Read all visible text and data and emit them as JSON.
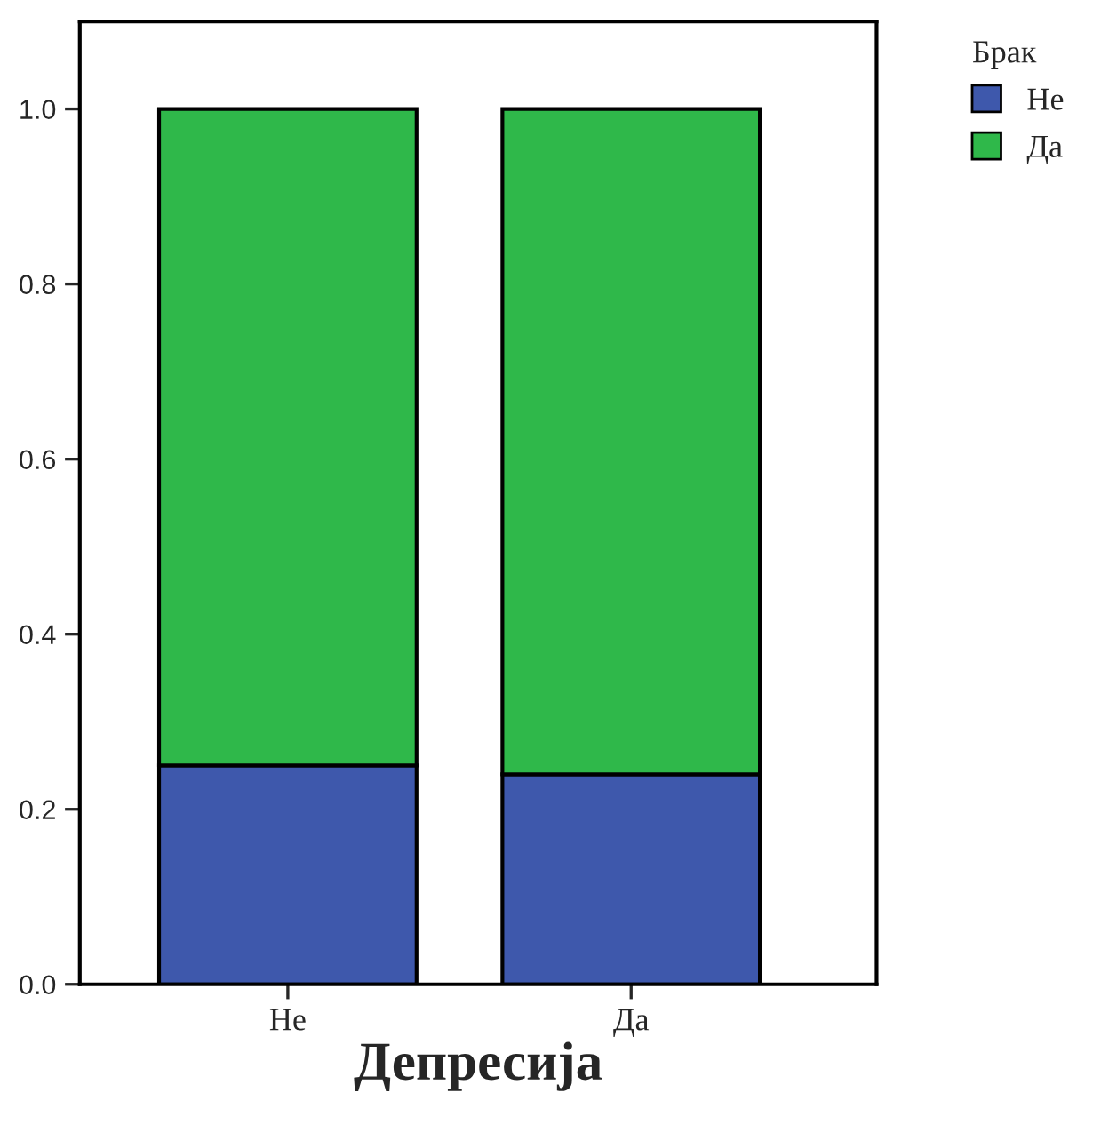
{
  "chart_data": {
    "type": "bar",
    "stacked": true,
    "xlabel": "Депресија",
    "legend_title": "Брак",
    "legend": "top right",
    "categories": [
      "Не",
      "Да"
    ],
    "series": [
      {
        "name": "Не",
        "color": "#3e58ac",
        "values": [
          0.25,
          0.24
        ]
      },
      {
        "name": "Да",
        "color": "#2fb84a",
        "values": [
          0.75,
          0.76
        ]
      }
    ],
    "ylim": [
      0,
      1.1
    ],
    "yticks": [
      {
        "value": 0,
        "label": "0.0"
      },
      {
        "value": 0.2,
        "label": "0.2"
      },
      {
        "value": 0.4,
        "label": "0.4"
      },
      {
        "value": 0.6,
        "label": "0.6"
      },
      {
        "value": 0.8,
        "label": "0.8"
      },
      {
        "value": 1,
        "label": "1.0"
      }
    ],
    "grid": false
  }
}
